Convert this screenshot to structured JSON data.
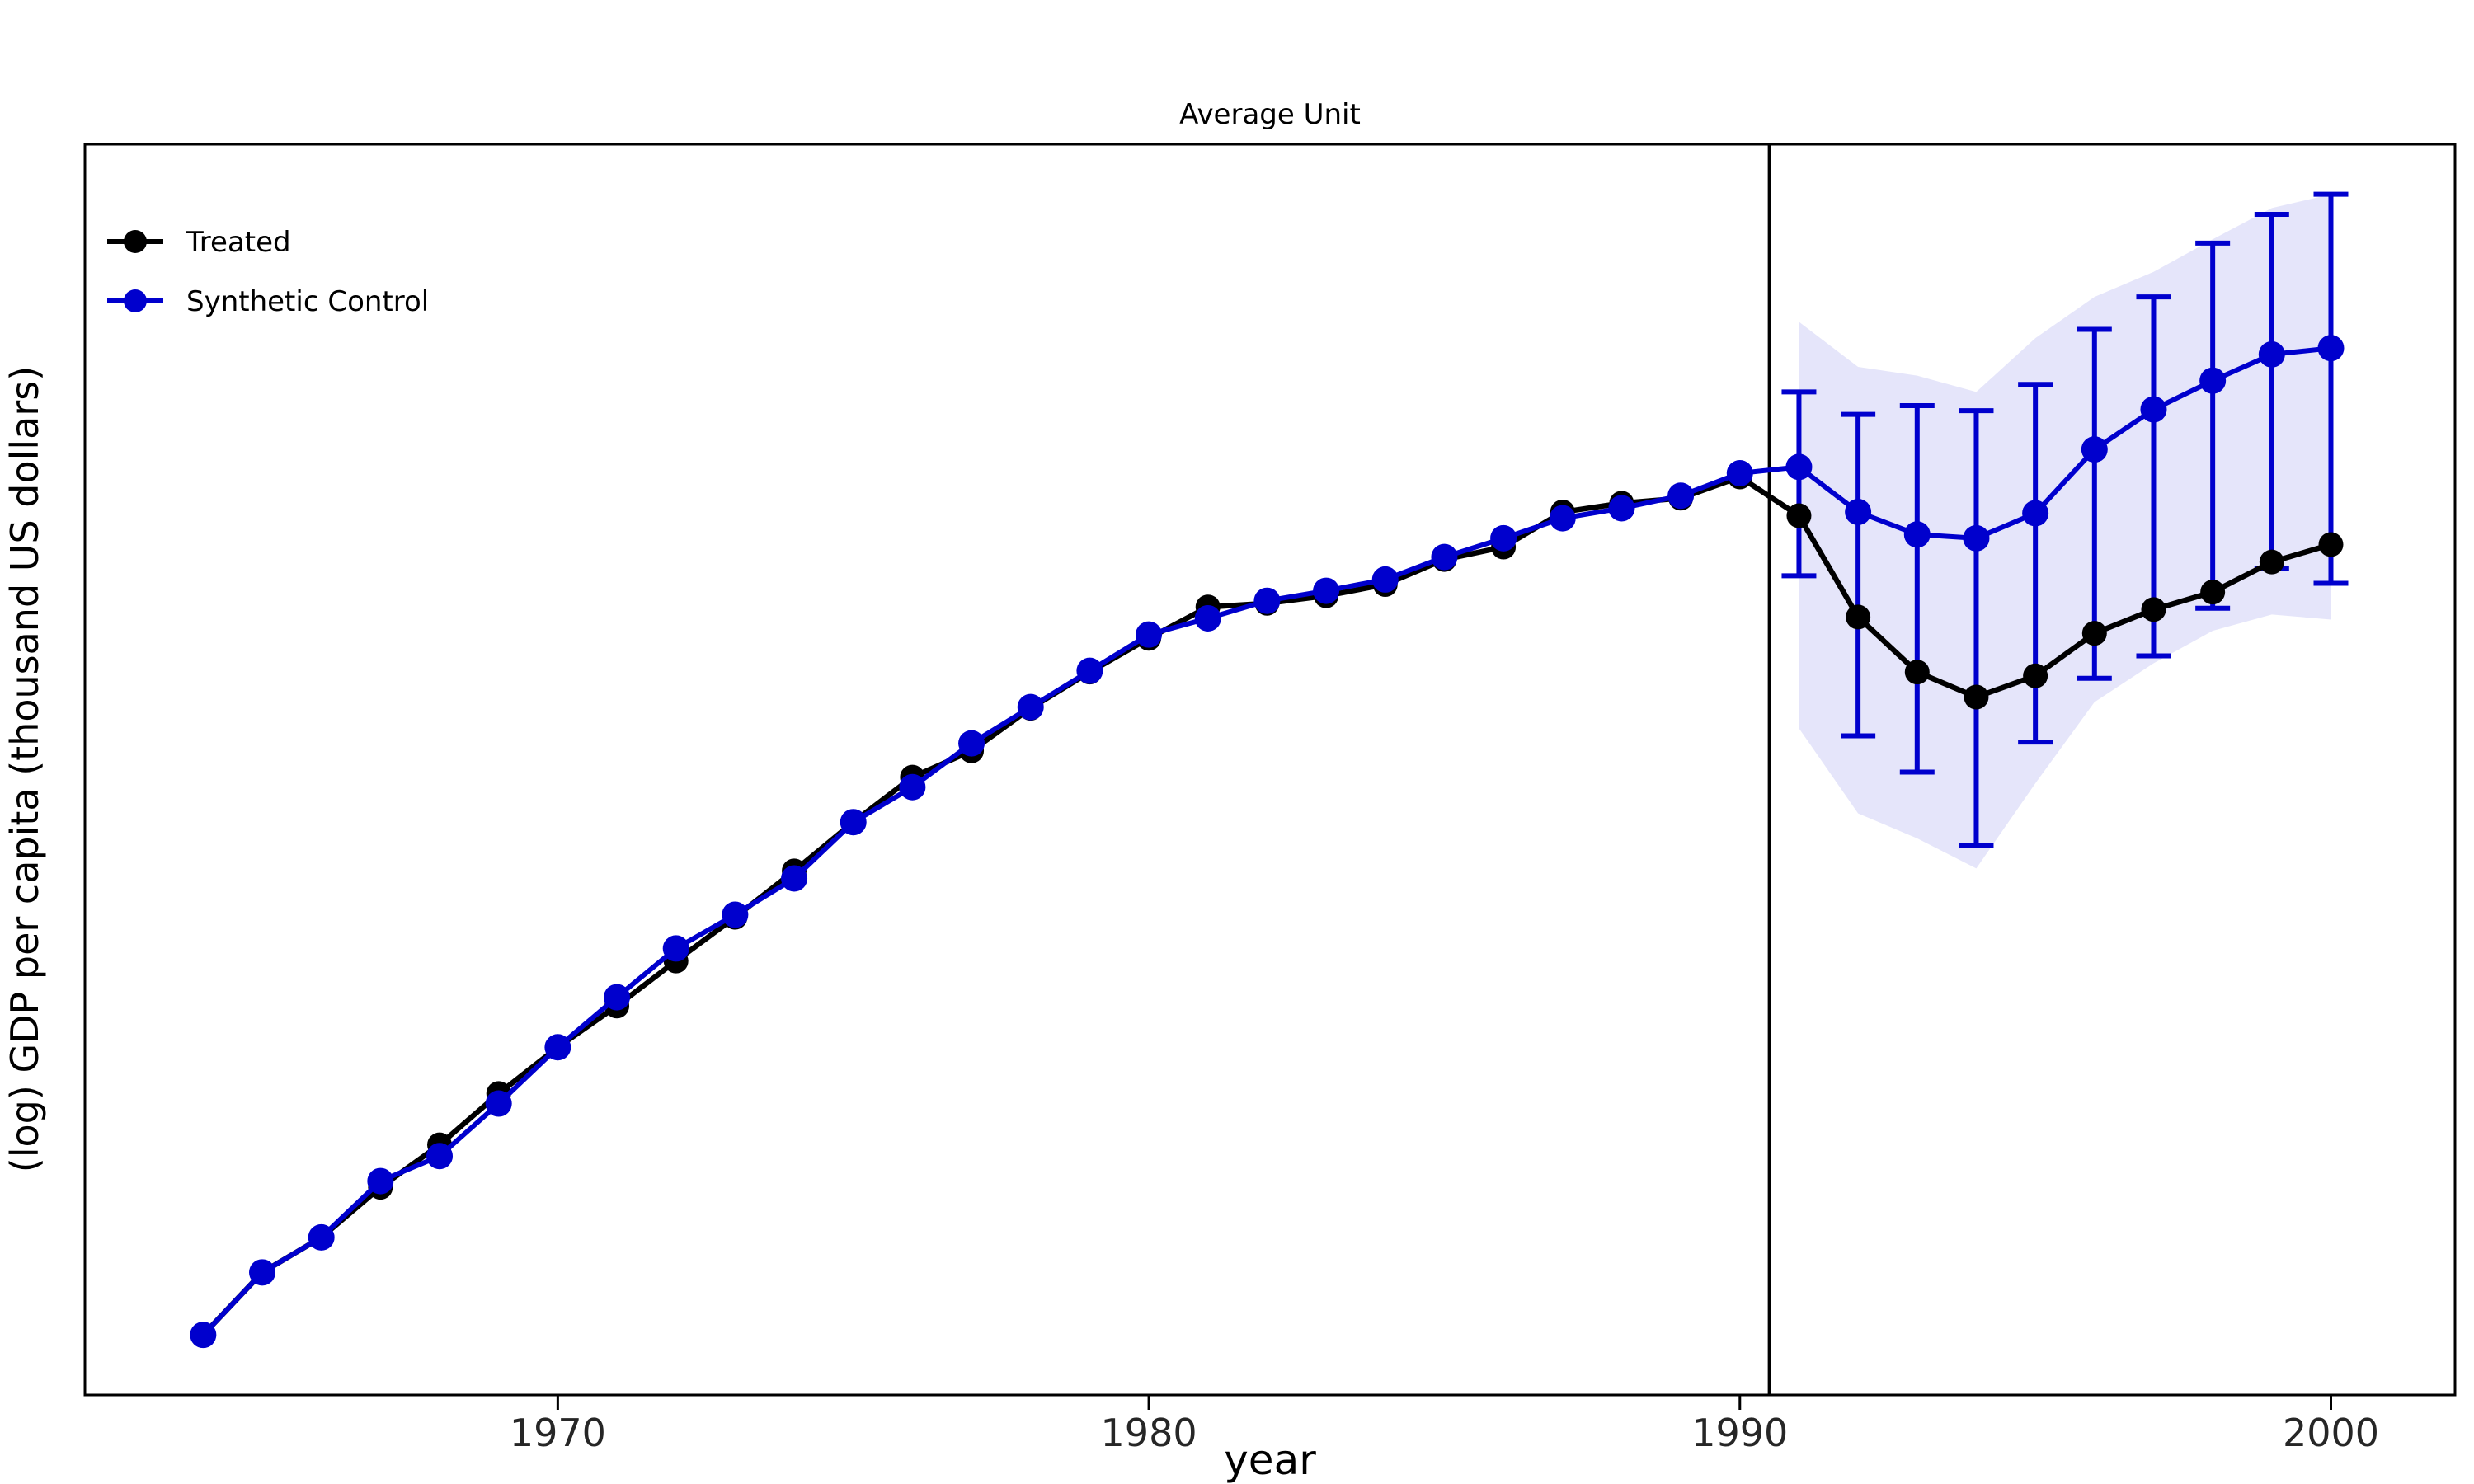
{
  "title": "Average Unit",
  "axes": {
    "xlabel": "year",
    "ylabel": "(log) GDP per capita (thousand US dollars)",
    "x_ticks": [
      1970,
      1980,
      1990,
      2000
    ],
    "xlim": [
      1962,
      2002.1
    ],
    "ylim": [
      0,
      1
    ],
    "y_axis_tick_labels_visible": false,
    "y_scale_note": "y axis has no tick labels in source image; series values are normalized fractions of plot height"
  },
  "legend": {
    "position": "upper-left",
    "items": [
      {
        "label": "Treated",
        "color": "#000000"
      },
      {
        "label": "Synthetic Control",
        "color": "#0000cd"
      }
    ]
  },
  "colors": {
    "treated": "#000000",
    "synthetic": "#0000cd",
    "band_fill": "rgba(0,0,205,0.10)",
    "treatment_line": "#000000",
    "plot_border": "#000000",
    "background": "#ffffff"
  },
  "treatment_line_x": 1990.5,
  "chart_data": {
    "type": "line",
    "title": "Average Unit",
    "xlabel": "year",
    "ylabel": "(log) GDP per capita (thousand US dollars)",
    "x": [
      1964,
      1965,
      1966,
      1967,
      1968,
      1969,
      1970,
      1971,
      1972,
      1973,
      1974,
      1975,
      1976,
      1977,
      1978,
      1979,
      1980,
      1981,
      1982,
      1983,
      1984,
      1985,
      1986,
      1987,
      1988,
      1989,
      1990,
      1991,
      1992,
      1993,
      1994,
      1995,
      1996,
      1997,
      1998,
      1999,
      2000
    ],
    "series": [
      {
        "name": "Treated",
        "color": "#000000",
        "values": [
          0.048,
          0.098,
          0.126,
          0.166,
          0.2,
          0.241,
          0.278,
          0.311,
          0.347,
          0.382,
          0.419,
          0.458,
          0.494,
          0.515,
          0.549,
          0.578,
          0.605,
          0.63,
          0.633,
          0.639,
          0.648,
          0.668,
          0.678,
          0.706,
          0.713,
          0.717,
          0.734,
          0.703,
          0.622,
          0.578,
          0.558,
          0.575,
          0.609,
          0.628,
          0.642,
          0.666,
          0.68
        ]
      },
      {
        "name": "Synthetic Control",
        "color": "#0000cd",
        "values": [
          0.048,
          0.098,
          0.126,
          0.171,
          0.191,
          0.233,
          0.278,
          0.318,
          0.357,
          0.384,
          0.413,
          0.458,
          0.486,
          0.521,
          0.55,
          0.579,
          0.608,
          0.621,
          0.635,
          0.643,
          0.652,
          0.67,
          0.685,
          0.701,
          0.709,
          0.719,
          0.737,
          0.742,
          0.706,
          0.688,
          0.685,
          0.705,
          0.756,
          0.788,
          0.811,
          0.832,
          0.837
        ],
        "error_bars": {
          "x": [
            1991,
            1992,
            1993,
            1994,
            1995,
            1996,
            1997,
            1998,
            1999,
            2000
          ],
          "low": [
            0.655,
            0.527,
            0.498,
            0.439,
            0.522,
            0.573,
            0.591,
            0.629,
            0.661,
            0.649
          ],
          "high": [
            0.802,
            0.784,
            0.791,
            0.787,
            0.808,
            0.852,
            0.878,
            0.921,
            0.944,
            0.96
          ]
        },
        "band": {
          "x": [
            1991,
            1992,
            1993,
            1994,
            1995,
            1996,
            1997,
            1998,
            1999,
            2000
          ],
          "low": [
            0.533,
            0.465,
            0.445,
            0.421,
            0.489,
            0.554,
            0.585,
            0.611,
            0.624,
            0.62
          ],
          "high": [
            0.858,
            0.822,
            0.815,
            0.802,
            0.845,
            0.878,
            0.898,
            0.924,
            0.949,
            0.96
          ]
        }
      }
    ],
    "annotations": [
      {
        "type": "vline",
        "x": 1990.5
      }
    ],
    "legend_entries": [
      "Treated",
      "Synthetic Control"
    ],
    "grid": false
  }
}
